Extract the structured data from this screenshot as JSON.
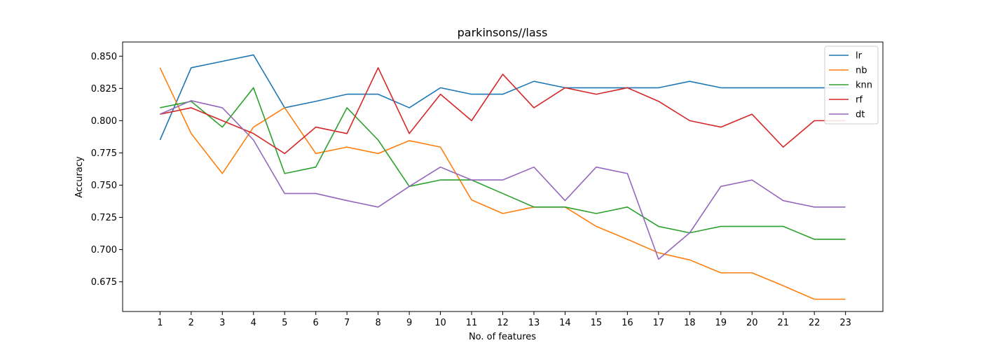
{
  "chart_data": {
    "type": "line",
    "title": "parkinsons//lass",
    "xlabel": "No. of features",
    "ylabel": "Accuracy",
    "x": [
      1,
      2,
      3,
      4,
      5,
      6,
      7,
      8,
      9,
      10,
      11,
      12,
      13,
      14,
      15,
      16,
      17,
      18,
      19,
      20,
      21,
      22,
      23
    ],
    "xticks": [
      "1",
      "2",
      "3",
      "4",
      "5",
      "6",
      "7",
      "8",
      "9",
      "10",
      "11",
      "12",
      "13",
      "14",
      "15",
      "16",
      "17",
      "18",
      "19",
      "20",
      "21",
      "22",
      "23"
    ],
    "yticks": [
      "0.675",
      "0.700",
      "0.725",
      "0.750",
      "0.775",
      "0.800",
      "0.825",
      "0.850"
    ],
    "ytick_values": [
      0.675,
      0.7,
      0.725,
      0.75,
      0.775,
      0.8,
      0.825,
      0.85
    ],
    "xlim": [
      -0.2,
      24.2
    ],
    "ylim": [
      0.652,
      0.861
    ],
    "grid": false,
    "legend_position": "top-right",
    "series": [
      {
        "name": "lr",
        "color": "#1f77b4",
        "values": [
          0.785,
          0.841,
          0.846,
          0.851,
          0.81,
          0.815,
          0.8205,
          0.8205,
          0.81,
          0.8255,
          0.8205,
          0.8205,
          0.8305,
          0.8255,
          0.8255,
          0.8255,
          0.8255,
          0.8305,
          0.8255,
          0.8255,
          0.8255,
          0.8255,
          0.8255
        ]
      },
      {
        "name": "nb",
        "color": "#ff7f0e",
        "values": [
          0.841,
          0.79,
          0.759,
          0.795,
          0.81,
          0.7745,
          0.7795,
          0.7745,
          0.7845,
          0.7795,
          0.7385,
          0.728,
          0.733,
          0.733,
          0.718,
          0.708,
          0.6975,
          0.692,
          0.682,
          0.682,
          0.672,
          0.6615,
          0.6615
        ]
      },
      {
        "name": "knn",
        "color": "#2ca02c",
        "values": [
          0.81,
          0.815,
          0.795,
          0.8255,
          0.759,
          0.764,
          0.81,
          0.785,
          0.749,
          0.754,
          0.754,
          0.7435,
          0.733,
          0.733,
          0.728,
          0.733,
          0.718,
          0.713,
          0.718,
          0.718,
          0.718,
          0.708,
          0.708
        ]
      },
      {
        "name": "rf",
        "color": "#d62728",
        "values": [
          0.805,
          0.81,
          0.8,
          0.79,
          0.7745,
          0.795,
          0.79,
          0.841,
          0.79,
          0.8205,
          0.8,
          0.836,
          0.81,
          0.8255,
          0.8205,
          0.8255,
          0.815,
          0.8,
          0.795,
          0.805,
          0.7795,
          0.8,
          0.8
        ]
      },
      {
        "name": "dt",
        "color": "#9467bd",
        "values": [
          0.805,
          0.8155,
          0.81,
          0.785,
          0.7435,
          0.7435,
          0.738,
          0.733,
          0.749,
          0.764,
          0.754,
          0.754,
          0.764,
          0.738,
          0.764,
          0.759,
          0.6925,
          0.713,
          0.749,
          0.754,
          0.738,
          0.733,
          0.733
        ]
      }
    ]
  }
}
